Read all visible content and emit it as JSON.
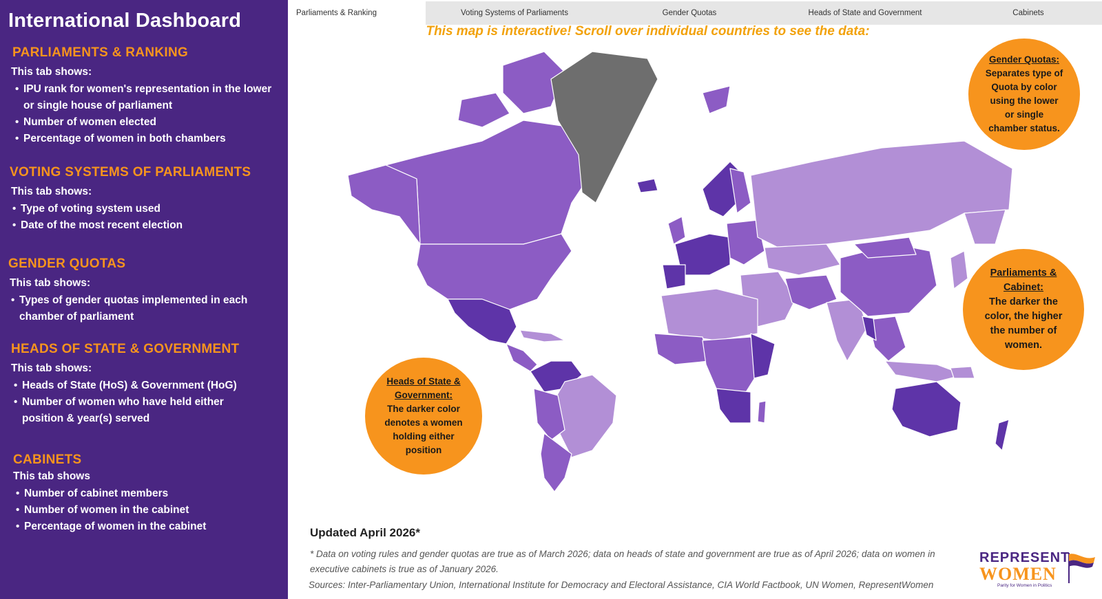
{
  "sidebar": {
    "title": "International Dashboard",
    "sections": [
      {
        "heading": "PARLIAMENTS & RANKING",
        "intro": "This tab shows:",
        "items": [
          "IPU rank for women's representation in the lower or single house of parliament",
          "Number of women elected",
          "Percentage of women in both chambers"
        ]
      },
      {
        "heading": "VOTING SYSTEMS OF PARLIAMENTS",
        "intro": "This tab shows:",
        "items": [
          "Type of voting system used",
          "Date of the most recent election"
        ]
      },
      {
        "heading": "GENDER QUOTAS",
        "intro": "This tab shows:",
        "items": [
          "Types of gender quotas implemented in each chamber of parliament"
        ]
      },
      {
        "heading": "HEADS OF STATE & GOVERNMENT",
        "intro": "This tab shows:",
        "items": [
          "Heads of State (HoS) & Government (HoG)",
          "Number of women who have held either position & year(s) served"
        ]
      },
      {
        "heading": "CABINETS",
        "intro": "This tab shows",
        "items": [
          "Number of cabinet members",
          "Number of women in the cabinet",
          "Percentage of women in the cabinet"
        ]
      }
    ]
  },
  "tabs": [
    {
      "label": "Parliaments & Ranking",
      "active": true
    },
    {
      "label": "Voting Systems of Parliaments",
      "active": false
    },
    {
      "label": "Gender Quotas",
      "active": false
    },
    {
      "label": "Heads of State and Government",
      "active": false
    },
    {
      "label": "Cabinets",
      "active": false
    }
  ],
  "instruction": "This map is interactive! Scroll over individual countries to see the data:",
  "callouts": {
    "gender_quotas": {
      "title": "Gender Quotas:",
      "body": "Separates type of Quota by color using the lower or single chamber status."
    },
    "parliaments_cabinet": {
      "title": "Parliaments & Cabinet:",
      "body": "The darker the color, the higher the number of women."
    },
    "heads_of_state": {
      "title": "Heads of State & Government:",
      "body": "The darker color denotes a women holding either position"
    }
  },
  "footer": {
    "updated": "Updated April 2026*",
    "note": "* Data on voting rules and gender quotas are true as of March 2026; data on heads of state and government are true as of April 2026; data on women in executive cabinets is true as of January 2026.",
    "sources": "Sources: Inter-Parliamentary Union, International Institute for Democracy and Electoral Assistance, CIA World Factbook, UN Women, RepresentWomen"
  },
  "logo": {
    "line1": "REPRESENT",
    "line2": "WOMEN",
    "tagline": "Parity for Women in Politics"
  },
  "colors": {
    "sidebar_bg": "#4a2682",
    "accent_orange": "#f7941d",
    "map_light": "#b28fd6",
    "map_mid": "#8c5cc4",
    "map_dark": "#5e34a8",
    "map_nodata": "#6e6e6e"
  }
}
